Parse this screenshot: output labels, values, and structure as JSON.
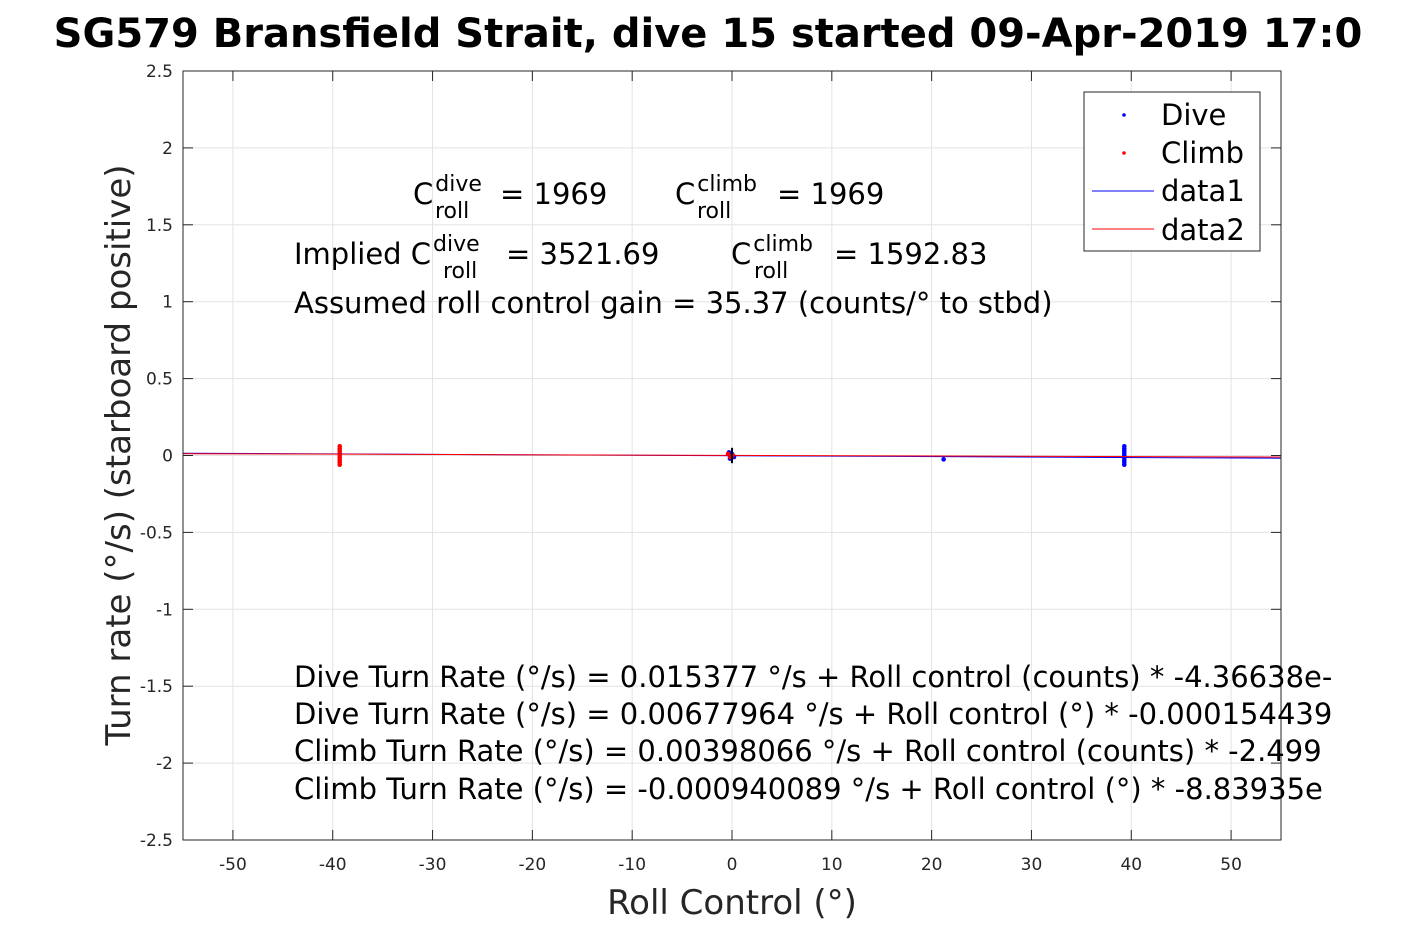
{
  "chart_data": {
    "type": "scatter",
    "title": "SG579 Bransfield Strait, dive 15 started 09-Apr-2019 17:0",
    "xlabel": "Roll Control (°)",
    "ylabel": "Turn rate (°/s) (starboard positive)",
    "xlim": [
      -55,
      55
    ],
    "ylim": [
      -2.5,
      2.5
    ],
    "xticks": [
      -50,
      -40,
      -30,
      -20,
      -10,
      0,
      10,
      20,
      30,
      40,
      50
    ],
    "yticks": [
      -2.5,
      -2,
      -1.5,
      -1,
      -0.5,
      0,
      0.5,
      1,
      1.5,
      2,
      2.5
    ],
    "grid": true,
    "legend_location": "top-right",
    "series": [
      {
        "name": "Dive",
        "kind": "points",
        "color": "#0000ff",
        "x": [
          39.3,
          39.3,
          39.3,
          39.3,
          39.3,
          39.3,
          39.3,
          39.3,
          39.3,
          21.2,
          -0.3,
          0.0,
          0.2,
          0.1,
          -0.2
        ],
        "y": [
          0.06,
          0.045,
          0.03,
          0.015,
          0.0,
          -0.015,
          -0.03,
          -0.045,
          -0.06,
          -0.025,
          0.02,
          0.01,
          -0.01,
          0.0,
          -0.02
        ]
      },
      {
        "name": "Climb",
        "kind": "points",
        "color": "#ff0000",
        "x": [
          -39.3,
          -39.3,
          -39.3,
          -39.3,
          -39.3,
          -39.3,
          -39.3,
          -39.3,
          -39.3,
          -0.4,
          -0.2,
          0.1
        ],
        "y": [
          0.06,
          0.045,
          0.03,
          0.015,
          0.0,
          -0.015,
          -0.03,
          -0.045,
          -0.06,
          0.01,
          -0.01,
          0.0
        ]
      },
      {
        "name": "data1",
        "kind": "line",
        "color": "#0000ff",
        "x": [
          -55,
          55
        ],
        "y": [
          0.0148,
          -0.0176
        ]
      },
      {
        "name": "data2",
        "kind": "line",
        "color": "#ff0000",
        "x": [
          -55,
          55
        ],
        "y": [
          0.0117,
          -0.0101
        ]
      },
      {
        "name": "",
        "kind": "line",
        "color": "#000000",
        "x": [
          0,
          0
        ],
        "y": [
          0.05,
          -0.05
        ]
      }
    ],
    "annotations": {
      "c_dive": {
        "prefix": "C",
        "sup": "dive",
        "sub": "roll",
        "rest": "= 1969"
      },
      "c_climb": {
        "prefix": "C",
        "sup": "climb",
        "sub": "roll",
        "rest": "= 1969"
      },
      "implied_dive": {
        "prefix": "Implied C",
        "sup": "dive",
        "sub": "roll",
        "rest": "= 3521.69"
      },
      "implied_climb": {
        "prefix": "C",
        "sup": "climb",
        "sub": "roll",
        "rest": "= 1592.83"
      },
      "gain": "Assumed roll control gain = 35.37 (counts/° to stbd)",
      "fits": [
        "Dive Turn Rate (°/s) = 0.015377 °/s + Roll control (counts) * -4.36638e-",
        "Dive Turn Rate (°/s) = 0.00677964 °/s + Roll control (°) * -0.000154439",
        "Climb Turn Rate (°/s) = 0.00398066 °/s + Roll control (counts) * -2.499",
        "Climb Turn Rate (°/s) = -0.000940089 °/s + Roll control (°) * -8.83935e"
      ]
    }
  }
}
